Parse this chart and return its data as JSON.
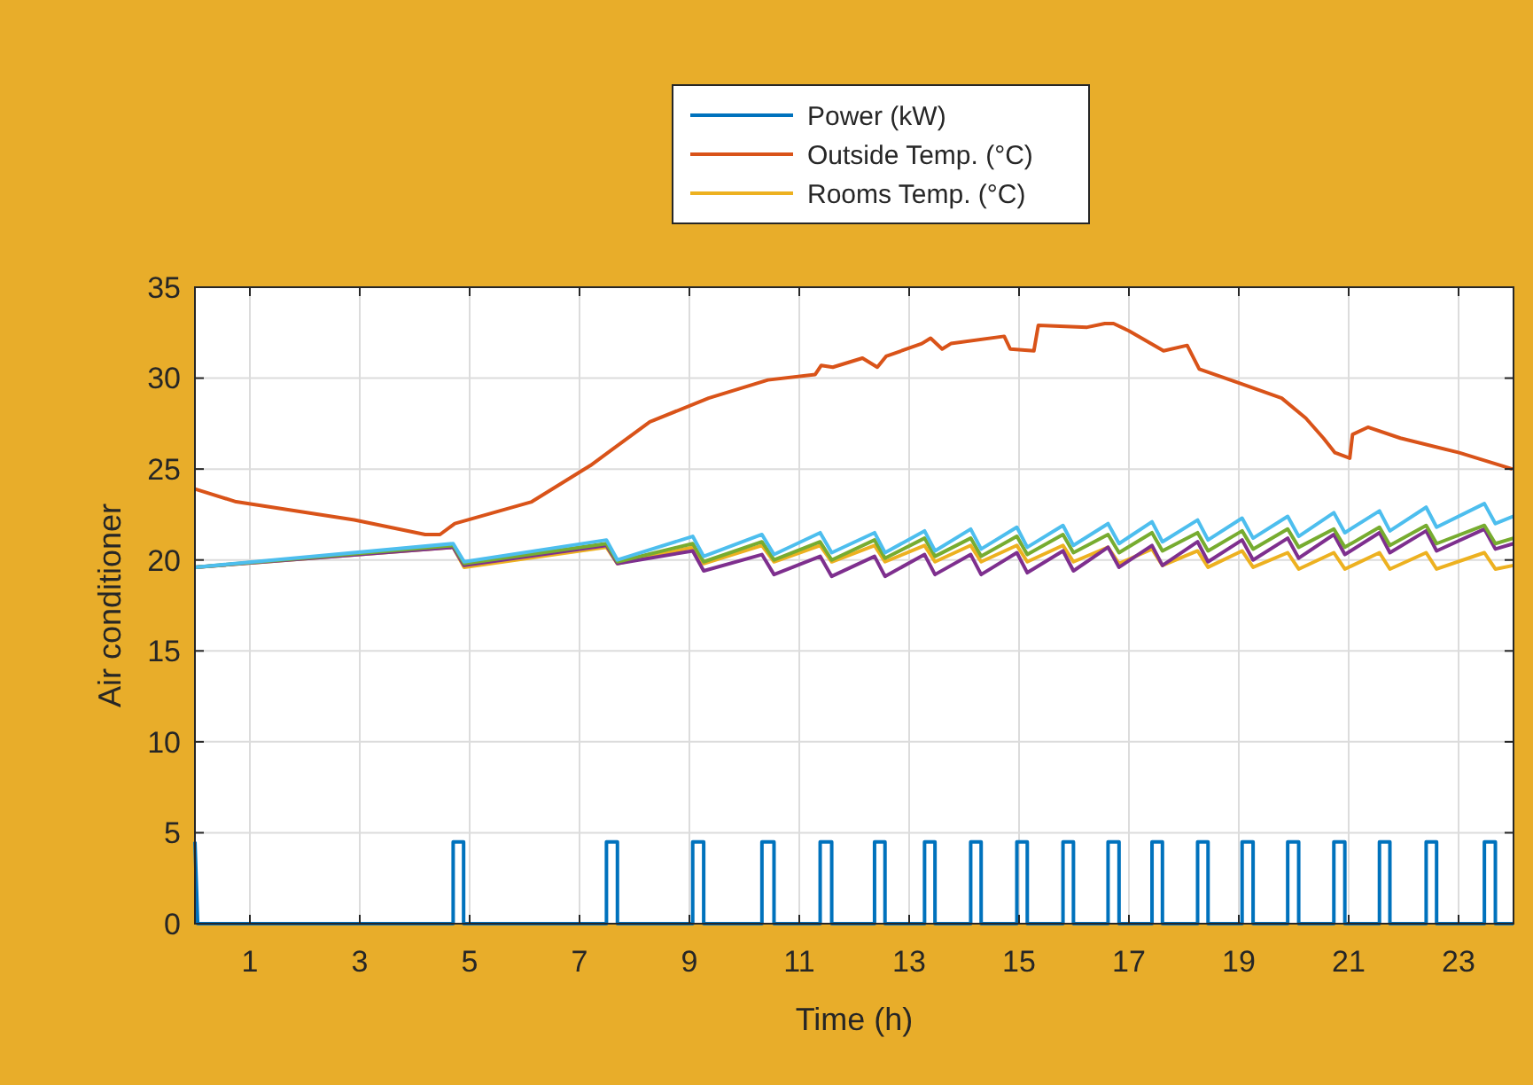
{
  "chart_data": {
    "type": "line",
    "xlabel": "Time (h)",
    "ylabel": "Air conditioner",
    "xlim": [
      0,
      24
    ],
    "xticks": [
      1,
      3,
      5,
      7,
      9,
      11,
      13,
      15,
      17,
      19,
      21,
      23
    ],
    "ylim": [
      0,
      35
    ],
    "yticks": [
      0,
      5,
      10,
      15,
      20,
      25,
      30,
      35
    ],
    "grid": true,
    "legend": "top",
    "line_style": "solid",
    "marker": "none",
    "x": [
      0,
      4.7,
      4.9,
      7.49,
      7.69,
      9.06,
      9.26,
      10.32,
      10.54,
      11.38,
      11.59,
      12.37,
      12.56,
      13.28,
      13.47,
      14.12,
      14.31,
      14.96,
      15.15,
      15.8,
      15.99,
      16.62,
      16.82,
      17.42,
      17.61,
      18.25,
      18.44,
      19.06,
      19.26,
      19.89,
      20.09,
      20.73,
      20.93,
      21.56,
      21.75,
      22.41,
      22.6,
      23.47,
      23.67,
      24
    ],
    "series": [
      {
        "name": "Power (kW)",
        "color": "#0072bd",
        "x": [
          0,
          0.05,
          4.7,
          4.7,
          4.89,
          4.89,
          7.49,
          7.49,
          7.69,
          7.69,
          9.06,
          9.06,
          9.26,
          9.26,
          10.32,
          10.32,
          10.54,
          10.54,
          11.38,
          11.38,
          11.59,
          11.59,
          12.37,
          12.37,
          12.56,
          12.56,
          13.28,
          13.28,
          13.47,
          13.47,
          14.12,
          14.12,
          14.31,
          14.31,
          14.96,
          14.96,
          15.15,
          15.15,
          15.8,
          15.8,
          15.99,
          15.99,
          16.62,
          16.62,
          16.82,
          16.82,
          17.42,
          17.42,
          17.61,
          17.61,
          18.25,
          18.25,
          18.44,
          18.44,
          19.06,
          19.06,
          19.26,
          19.26,
          19.89,
          19.89,
          20.09,
          20.09,
          20.73,
          20.73,
          20.93,
          20.93,
          21.56,
          21.56,
          21.75,
          21.75,
          22.41,
          22.41,
          22.6,
          22.6,
          23.47,
          23.47,
          23.67,
          23.67,
          24
        ],
        "values": [
          4.5,
          0,
          0,
          4.5,
          4.5,
          0,
          0,
          4.5,
          4.5,
          0,
          0,
          4.5,
          4.5,
          0,
          0,
          4.5,
          4.5,
          0,
          0,
          4.5,
          4.5,
          0,
          0,
          4.5,
          4.5,
          0,
          0,
          4.5,
          4.5,
          0,
          0,
          4.5,
          4.5,
          0,
          0,
          4.5,
          4.5,
          0,
          0,
          4.5,
          4.5,
          0,
          0,
          4.5,
          4.5,
          0,
          0,
          4.5,
          4.5,
          0,
          0,
          4.5,
          4.5,
          0,
          0,
          4.5,
          4.5,
          0,
          0,
          4.5,
          4.5,
          0,
          0,
          4.5,
          4.5,
          0,
          0,
          4.5,
          4.5,
          0,
          0,
          4.5,
          4.5,
          0,
          0,
          4.5,
          4.5,
          0,
          0
        ]
      },
      {
        "name": "Outside Temp. (°C)",
        "color": "#d95319",
        "x": [
          0,
          0.75,
          2.9,
          4.19,
          4.46,
          4.73,
          6.13,
          7.2,
          8.28,
          9.35,
          10.43,
          11.29,
          11.4,
          11.61,
          12.15,
          12.42,
          12.58,
          13.23,
          13.39,
          13.6,
          13.76,
          14.73,
          14.84,
          15.27,
          15.35,
          16.24,
          16.56,
          16.72,
          17.0,
          17.63,
          18.06,
          18.28,
          19.03,
          19.78,
          20.22,
          20.54,
          20.75,
          21.02,
          21.07,
          21.35,
          21.94,
          23.01,
          23.98
        ],
        "values": [
          23.9,
          23.2,
          22.2,
          21.4,
          21.4,
          22.0,
          23.2,
          25.2,
          27.6,
          28.9,
          29.9,
          30.2,
          30.7,
          30.6,
          31.1,
          30.6,
          31.2,
          31.9,
          32.2,
          31.6,
          31.9,
          32.3,
          31.6,
          31.5,
          32.9,
          32.8,
          33.0,
          33.0,
          32.6,
          31.5,
          31.8,
          30.5,
          29.7,
          28.9,
          27.8,
          26.7,
          25.9,
          25.6,
          26.9,
          27.3,
          26.7,
          25.9,
          25.0
        ]
      },
      {
        "name": "Rooms Temp. (°C)",
        "color": "#edb120",
        "values": [
          19.6,
          20.7,
          19.6,
          20.7,
          19.8,
          20.7,
          19.8,
          20.8,
          19.9,
          20.8,
          19.9,
          20.8,
          19.9,
          20.8,
          19.9,
          20.8,
          19.9,
          20.8,
          19.9,
          20.8,
          19.9,
          20.7,
          19.8,
          20.6,
          19.7,
          20.5,
          19.6,
          20.5,
          19.6,
          20.4,
          19.5,
          20.4,
          19.5,
          20.4,
          19.5,
          20.4,
          19.5,
          20.4,
          19.5,
          19.7
        ]
      },
      {
        "color": "#7e2f8e",
        "values": [
          19.6,
          20.7,
          19.7,
          20.8,
          19.8,
          20.5,
          19.4,
          20.3,
          19.2,
          20.2,
          19.1,
          20.2,
          19.1,
          20.3,
          19.2,
          20.3,
          19.2,
          20.4,
          19.3,
          20.5,
          19.4,
          20.7,
          19.6,
          20.8,
          19.7,
          21.0,
          19.9,
          21.1,
          20.0,
          21.2,
          20.1,
          21.4,
          20.3,
          21.5,
          20.4,
          21.6,
          20.5,
          21.7,
          20.6,
          20.9
        ]
      },
      {
        "color": "#77ac30",
        "values": [
          19.6,
          20.8,
          19.8,
          20.9,
          19.9,
          20.9,
          19.9,
          21.0,
          20.0,
          21.0,
          20.0,
          21.1,
          20.1,
          21.2,
          20.2,
          21.2,
          20.2,
          21.3,
          20.3,
          21.4,
          20.4,
          21.4,
          20.4,
          21.5,
          20.5,
          21.5,
          20.5,
          21.6,
          20.6,
          21.7,
          20.7,
          21.7,
          20.7,
          21.8,
          20.8,
          21.9,
          20.9,
          21.9,
          20.9,
          21.2
        ]
      },
      {
        "color": "#4dbeee",
        "values": [
          19.6,
          20.9,
          19.9,
          21.1,
          20.0,
          21.3,
          20.2,
          21.4,
          20.3,
          21.5,
          20.4,
          21.5,
          20.4,
          21.6,
          20.5,
          21.7,
          20.6,
          21.8,
          20.7,
          21.9,
          20.8,
          22.0,
          20.9,
          22.1,
          21.0,
          22.2,
          21.1,
          22.3,
          21.2,
          22.4,
          21.3,
          22.6,
          21.5,
          22.7,
          21.6,
          22.9,
          21.8,
          23.1,
          22.0,
          22.4
        ]
      }
    ]
  }
}
